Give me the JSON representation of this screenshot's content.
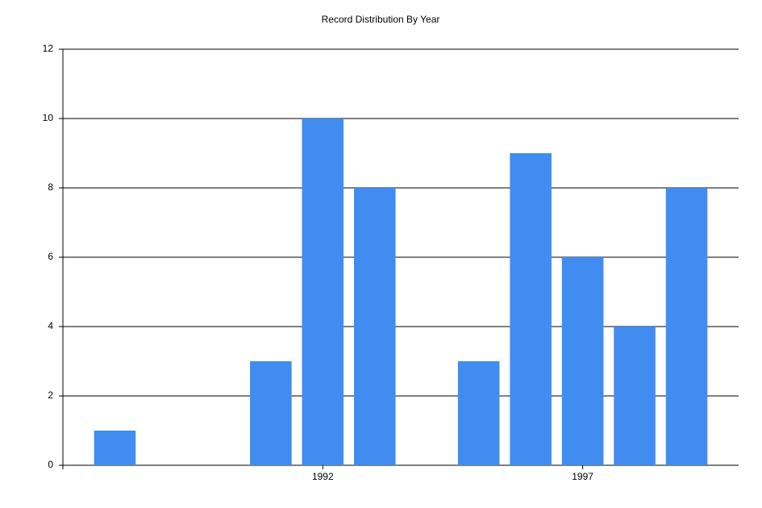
{
  "chart_data": {
    "type": "bar",
    "title": "Record Distribution By Year",
    "x": [
      1988,
      1991,
      1992,
      1993,
      1995,
      1996,
      1997,
      1998,
      1999
    ],
    "values": [
      1,
      3,
      10,
      8,
      3,
      9,
      6,
      4,
      8
    ],
    "color": "#418cf0",
    "xlim": [
      1987,
      2000
    ],
    "xticks": [
      1992,
      1997
    ],
    "ylim": [
      0,
      12
    ],
    "yticks": [
      0,
      2,
      4,
      6,
      8,
      10,
      12
    ],
    "grid": true
  }
}
